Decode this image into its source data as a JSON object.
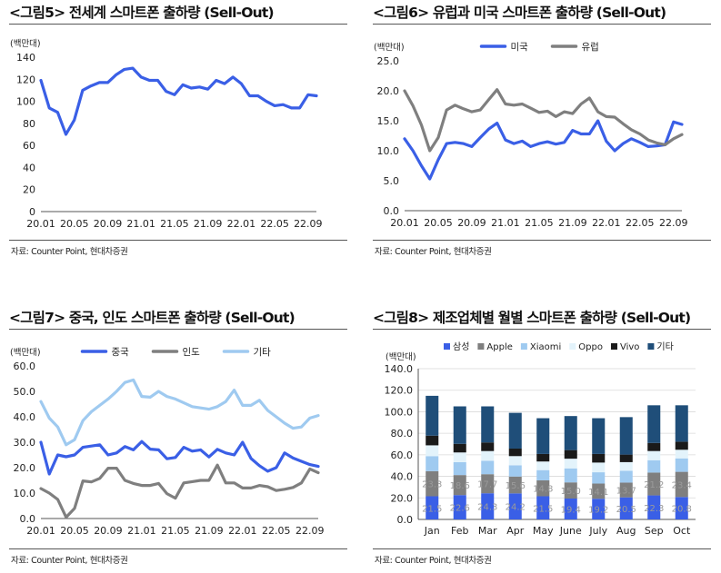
{
  "charts": [
    {
      "title": "<그림5> 전세계 스마트폰 출하량 (Sell-Out)",
      "source": "자료: Counter Point, 현대차증권",
      "chart_data": {
        "type": "line",
        "ylabel": "(백만대)",
        "ylim": [
          0,
          140
        ],
        "yticks": [
          "0",
          "20",
          "40",
          "60",
          "80",
          "100",
          "120",
          "140"
        ],
        "xtick_labels": [
          "20.01",
          "20.05",
          "20.09",
          "21.01",
          "21.05",
          "21.09",
          "22.01",
          "22.05",
          "22.09"
        ],
        "xtick_index": [
          0,
          4,
          8,
          12,
          16,
          20,
          24,
          28,
          32
        ],
        "series": [
          {
            "name": "",
            "color": "#3a5fe6",
            "values": [
              119,
              94,
              90,
              70,
              83,
              110,
              114,
              117,
              117,
              124,
              129,
              130,
              122,
              119,
              119,
              109,
              106,
              115,
              112,
              113,
              111,
              119,
              116,
              122,
              116,
              105,
              105,
              100,
              96,
              97,
              94,
              94,
              106,
              105
            ]
          }
        ]
      }
    },
    {
      "title": "<그림6> 유럽과 미국 스마트폰 출하량 (Sell-Out)",
      "source": "자료: Counter Point, 현대차증권",
      "chart_data": {
        "type": "line",
        "ylabel": "(백만대)",
        "ylim": [
          0,
          25
        ],
        "yticks": [
          "0.0",
          "5.0",
          "10.0",
          "15.0",
          "20.0",
          "25.0"
        ],
        "xtick_labels": [
          "20.01",
          "20.05",
          "20.09",
          "21.01",
          "21.05",
          "21.09",
          "22.01",
          "22.05",
          "22.09"
        ],
        "xtick_index": [
          0,
          4,
          8,
          12,
          16,
          20,
          24,
          28,
          32
        ],
        "legend": "top",
        "series": [
          {
            "name": "미국",
            "color": "#3a5fe6",
            "values": [
              12.0,
              10.0,
              7.5,
              5.3,
              8.5,
              11.2,
              11.4,
              11.2,
              10.7,
              12.2,
              13.6,
              14.6,
              11.8,
              11.2,
              11.6,
              10.7,
              11.2,
              11.5,
              11.1,
              11.4,
              13.4,
              12.8,
              12.8,
              15.0,
              11.6,
              10.0,
              11.2,
              12.0,
              11.4,
              10.7,
              10.8,
              11.0,
              14.8,
              14.4
            ]
          },
          {
            "name": "유럽",
            "color": "#7f7f7f",
            "values": [
              20.0,
              17.5,
              14.3,
              10.0,
              12.2,
              16.8,
              17.6,
              17.0,
              16.5,
              16.8,
              18.5,
              20.2,
              17.8,
              17.6,
              17.8,
              17.1,
              16.4,
              16.6,
              15.7,
              16.5,
              16.2,
              17.8,
              18.8,
              16.5,
              15.7,
              15.6,
              14.5,
              13.5,
              12.8,
              11.8,
              11.3,
              11.0,
              12.0,
              12.7
            ]
          }
        ]
      }
    },
    {
      "title": "<그림7> 중국, 인도 스마트폰 출하량 (Sell-Out)",
      "source": "자료: Counter Point, 현대차증권",
      "chart_data": {
        "type": "line",
        "ylabel": "(백만대)",
        "ylim": [
          0,
          60
        ],
        "yticks": [
          "0.0",
          "10.0",
          "20.0",
          "30.0",
          "40.0",
          "50.0",
          "60.0"
        ],
        "xtick_labels": [
          "20.01",
          "20.05",
          "20.09",
          "21.01",
          "21.05",
          "21.09",
          "22.01",
          "22.05",
          "22.09"
        ],
        "xtick_index": [
          0,
          4,
          8,
          12,
          16,
          20,
          24,
          28,
          32
        ],
        "legend": "top",
        "series": [
          {
            "name": "중국",
            "color": "#3a5fe6",
            "values": [
              30.0,
              17.5,
              25.0,
              24.3,
              25.0,
              28.0,
              28.5,
              29.0,
              25.0,
              25.8,
              28.3,
              27.0,
              30.3,
              27.3,
              27.0,
              23.5,
              24.0,
              28.0,
              26.5,
              27.0,
              24.2,
              27.2,
              25.8,
              25.0,
              30.0,
              23.6,
              20.8,
              18.6,
              20.0,
              25.8,
              23.8,
              22.5,
              21.2,
              20.5
            ]
          },
          {
            "name": "인도",
            "color": "#7f7f7f",
            "values": [
              11.8,
              10.0,
              7.5,
              0.5,
              4.0,
              14.8,
              14.4,
              15.8,
              19.8,
              19.8,
              15.0,
              13.8,
              13.0,
              13.0,
              13.8,
              9.8,
              8.0,
              14.0,
              14.5,
              15.0,
              15.0,
              21.0,
              14.0,
              14.0,
              12.0,
              12.0,
              13.0,
              12.5,
              11.0,
              11.5,
              12.2,
              14.0,
              19.5,
              18.0
            ]
          },
          {
            "name": "기타",
            "color": "#9fcaf0",
            "values": [
              46.0,
              39.5,
              36.0,
              29.0,
              31.0,
              38.5,
              42.0,
              44.5,
              47.0,
              50.0,
              53.5,
              54.5,
              48.0,
              47.7,
              50.0,
              48.0,
              47.0,
              45.5,
              44.0,
              43.5,
              43.0,
              44.0,
              46.0,
              50.5,
              44.5,
              44.5,
              46.5,
              42.5,
              40.0,
              37.5,
              35.5,
              36.0,
              39.5,
              40.5
            ]
          }
        ]
      }
    },
    {
      "title": "<그림8> 제조업체별 월별 스마트폰 출하량 (Sell-Out)",
      "source": "자료: Counter Point, 현대차증권",
      "chart_data": {
        "type": "bar",
        "stacked": true,
        "ylabel": "(백만대)",
        "ylim": [
          0,
          140
        ],
        "yticks": [
          "0.0",
          "20.0",
          "40.0",
          "60.0",
          "80.0",
          "100.0",
          "120.0",
          "140.0"
        ],
        "categories": [
          "Jan",
          "Feb",
          "Mar",
          "Apr",
          "May",
          "June",
          "July",
          "Aug",
          "Sep",
          "Oct"
        ],
        "legend": "top",
        "series": [
          {
            "name": "삼성",
            "color": "#3a5fe6",
            "values": [
              21.5,
              22.6,
              24.3,
              24.2,
              21.5,
              19.4,
              19.2,
              20.5,
              22.3,
              20.8
            ],
            "labels": [
              "21.5",
              "22.6",
              "24.3",
              "24.2",
              "21.5",
              "19.4",
              "19.2",
              "20.5",
              "22.3",
              "20.8"
            ]
          },
          {
            "name": "Apple",
            "color": "#7f7f7f",
            "values": [
              23.3,
              18.6,
              17.7,
              15.6,
              14.8,
              15.0,
              14.1,
              13.7,
              21.2,
              23.4
            ],
            "labels": [
              "23.3",
              "18.6",
              "17.7",
              "15.6",
              "14.8",
              "15.0",
              "14.1",
              "13.7",
              "21.2",
              "23.4"
            ]
          },
          {
            "name": "Xiaomi",
            "color": "#9fcaf0",
            "values": [
              14.0,
              12.0,
              12.5,
              10.5,
              9.5,
              13.0,
              10.5,
              11.0,
              11.5,
              12.5
            ]
          },
          {
            "name": "Oppo",
            "color": "#e3f3fb",
            "values": [
              10.0,
              9.0,
              9.0,
              8.5,
              8.0,
              9.0,
              9.0,
              8.0,
              8.5,
              8.0
            ]
          },
          {
            "name": "Vivo",
            "color": "#1a1a1a",
            "values": [
              9.0,
              8.0,
              8.0,
              7.0,
              7.0,
              8.0,
              8.0,
              7.0,
              7.5,
              7.5
            ]
          },
          {
            "name": "기타",
            "color": "#1f4e79",
            "values": [
              37.0,
              34.8,
              33.5,
              33.2,
              33.2,
              31.6,
              33.2,
              34.8,
              35.0,
              33.8
            ]
          }
        ]
      }
    }
  ]
}
